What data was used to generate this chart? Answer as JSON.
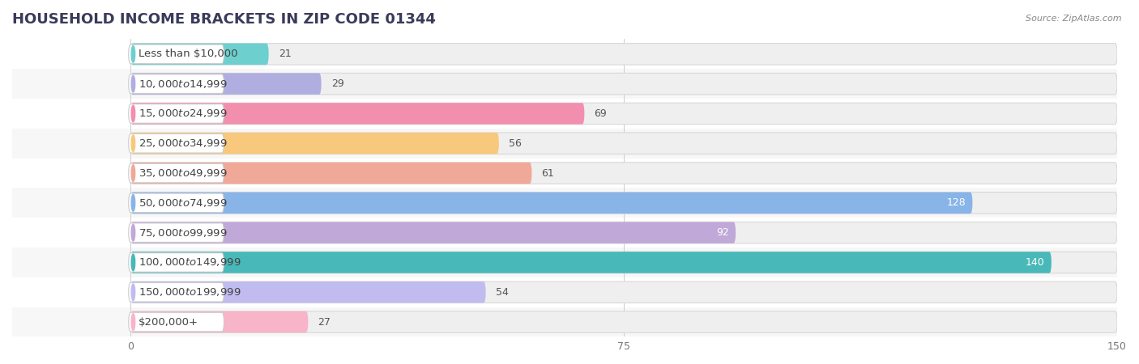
{
  "title": "HOUSEHOLD INCOME BRACKETS IN ZIP CODE 01344",
  "source": "Source: ZipAtlas.com",
  "categories": [
    "Less than $10,000",
    "$10,000 to $14,999",
    "$15,000 to $24,999",
    "$25,000 to $34,999",
    "$35,000 to $49,999",
    "$50,000 to $74,999",
    "$75,000 to $99,999",
    "$100,000 to $149,999",
    "$150,000 to $199,999",
    "$200,000+"
  ],
  "values": [
    21,
    29,
    69,
    56,
    61,
    128,
    92,
    140,
    54,
    27
  ],
  "bar_colors": [
    "#6ecfcf",
    "#b0aee0",
    "#f28faf",
    "#f8c87c",
    "#f0a898",
    "#88b4e8",
    "#c0a8d8",
    "#48b8b8",
    "#c0bcf0",
    "#f8b4c8"
  ],
  "dot_colors": [
    "#6ecfcf",
    "#b0aee0",
    "#f28faf",
    "#f8c87c",
    "#f0a898",
    "#88b4e8",
    "#c0a8d8",
    "#48b8b8",
    "#c0bcf0",
    "#f8b4c8"
  ],
  "xlim": [
    -18,
    150
  ],
  "data_xlim": [
    0,
    150
  ],
  "xticks": [
    0,
    75,
    150
  ],
  "background_color": "#ffffff",
  "bar_bg_color": "#efefef",
  "row_bg_even": "#ffffff",
  "row_bg_odd": "#f7f7f7",
  "bar_height": 0.72,
  "title_fontsize": 13,
  "label_fontsize": 9.5,
  "value_fontsize": 9
}
